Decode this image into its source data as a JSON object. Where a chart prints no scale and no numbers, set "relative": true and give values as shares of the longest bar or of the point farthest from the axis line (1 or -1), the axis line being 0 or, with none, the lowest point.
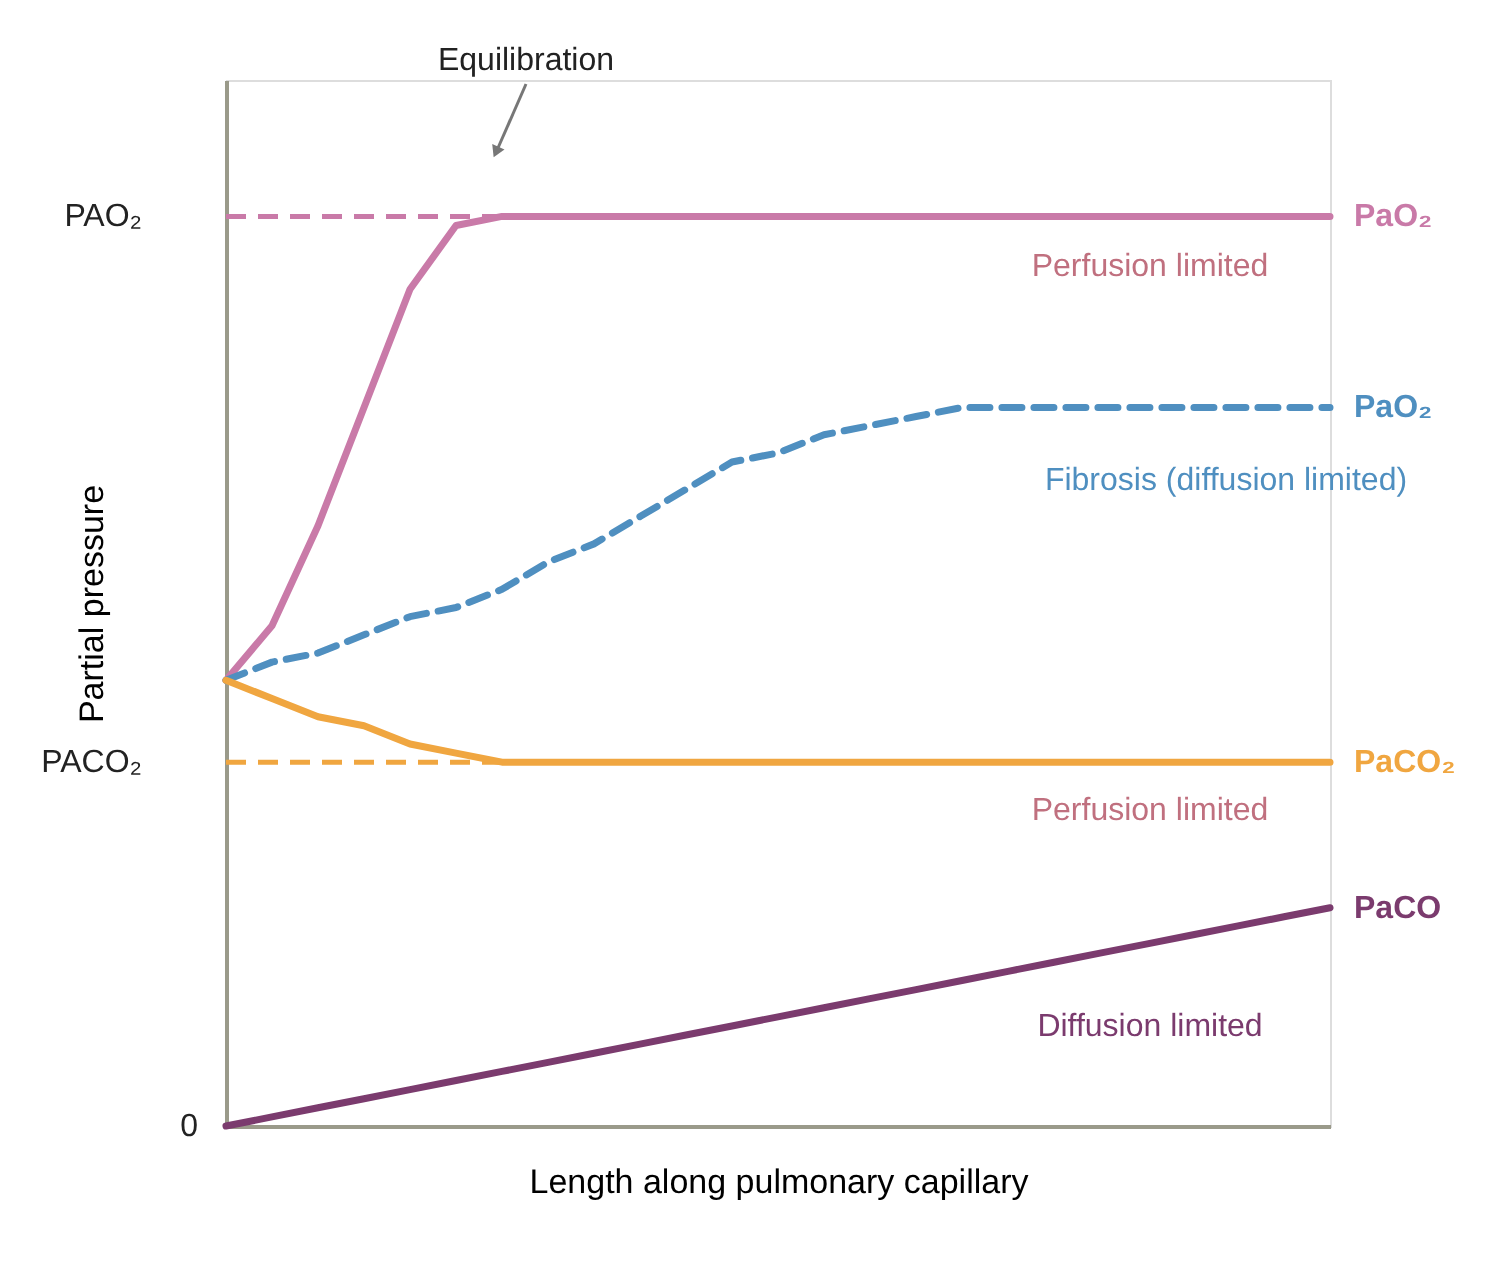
{
  "chart_data": {
    "type": "line",
    "relative": true,
    "xlabel": "Length along pulmonary capillary",
    "ylabel": "Partial pressure",
    "grid": false,
    "legend": false,
    "marker": "none",
    "categories": [
      null,
      null,
      null,
      null,
      null,
      null,
      null,
      null,
      null,
      null,
      null,
      null,
      null,
      null,
      null,
      null,
      null,
      null,
      null,
      null,
      null,
      null,
      null,
      null,
      null
    ],
    "series": [
      {
        "name": "PaO₂",
        "color": "#c97aa8",
        "line_style": "solid",
        "values": [
          0.49,
          0.55,
          0.66,
          0.79,
          0.92,
          0.99,
          1.0,
          1.0,
          1.0,
          1.0,
          1.0,
          1.0,
          1.0,
          1.0,
          1.0,
          1.0,
          1.0,
          1.0,
          1.0,
          1.0,
          1.0,
          1.0,
          1.0,
          1.0,
          1.0
        ]
      },
      {
        "name": "PaO₂",
        "color": "#4f8fc0",
        "line_style": "dashed",
        "values": [
          0.49,
          0.51,
          0.52,
          0.54,
          0.56,
          0.57,
          0.59,
          0.62,
          0.64,
          0.67,
          0.7,
          0.73,
          0.74,
          0.76,
          0.77,
          0.78,
          0.79,
          0.79,
          0.79,
          0.79,
          0.79,
          0.79,
          0.79,
          0.79,
          0.79
        ]
      },
      {
        "name": "PaCO₂",
        "color": "#f0a640",
        "line_style": "solid",
        "values": [
          0.49,
          0.47,
          0.45,
          0.44,
          0.42,
          0.41,
          0.4,
          0.4,
          0.4,
          0.4,
          0.4,
          0.4,
          0.4,
          0.4,
          0.4,
          0.4,
          0.4,
          0.4,
          0.4,
          0.4,
          0.4,
          0.4,
          0.4,
          0.4,
          0.4
        ]
      },
      {
        "name": "PaCO",
        "color": "#7b3b6e",
        "line_style": "solid",
        "values": [
          0,
          0.01,
          0.02,
          0.03,
          0.04,
          0.05,
          0.06,
          0.07,
          0.08,
          0.09,
          0.1,
          0.11,
          0.12,
          0.13,
          0.14,
          0.15,
          0.16,
          0.17,
          0.18,
          0.19,
          0.2,
          0.21,
          0.22,
          0.23,
          0.24
        ]
      }
    ],
    "ref_lines": [
      {
        "axis": "y",
        "value": 1.0,
        "label": "PAO₂",
        "color": "#c97aa8",
        "line_style": "dashed"
      },
      {
        "axis": "y",
        "value": 0.4,
        "label": "PACO₂",
        "color": "#f0a640",
        "line_style": "dashed"
      }
    ],
    "annotations": [
      "Equilibration",
      "Perfusion limited",
      "Fibrosis (diffusion limited)",
      "Perfusion limited",
      "Diffusion limited",
      "0"
    ]
  }
}
